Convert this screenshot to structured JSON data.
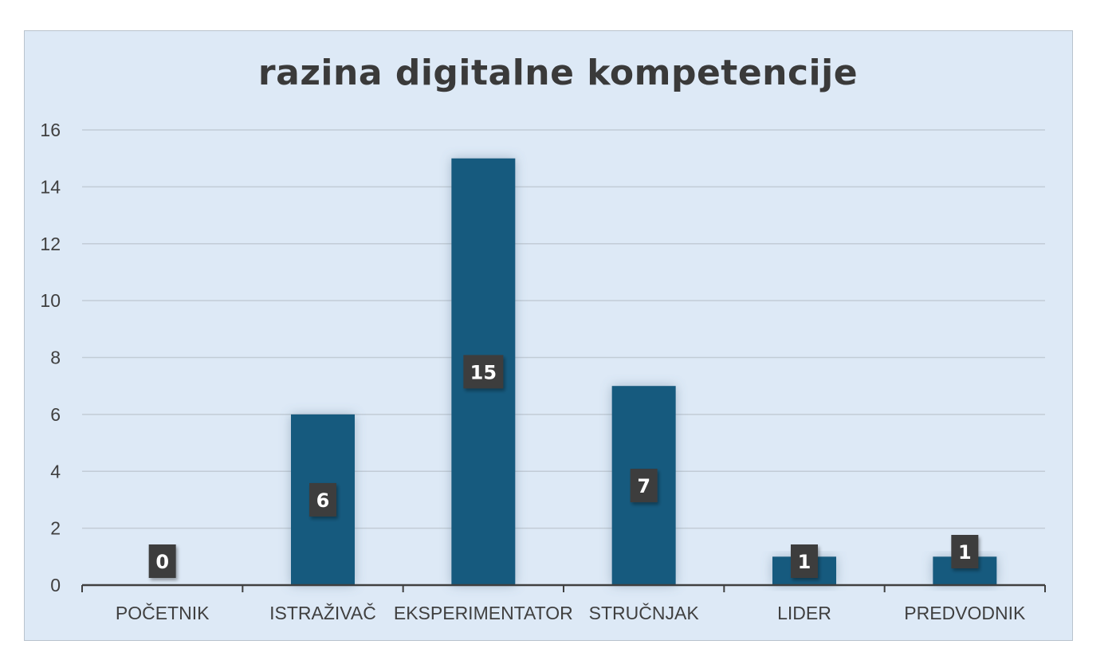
{
  "chart_data": {
    "type": "bar",
    "title": "razina digitalne kompetencije",
    "xlabel": "",
    "ylabel": "",
    "categories": [
      "POČETNIK",
      "ISTRAŽIVAČ",
      "EKSPERIMENTATOR",
      "STRUČNJAK",
      "LIDER",
      "PREDVODNIK"
    ],
    "values": [
      0,
      6,
      15,
      7,
      1,
      1
    ],
    "ylim": [
      0,
      16
    ],
    "yticks": [
      0,
      2,
      4,
      6,
      8,
      10,
      12,
      14,
      16
    ],
    "grid": true,
    "legend": "none",
    "data_labels": true
  },
  "colors": {
    "bar": "#165a7e",
    "plot_background": "#dde9f6",
    "gridline": "#c2ccd6",
    "axis": "#404040",
    "data_label_background": "#3d3d3d"
  }
}
